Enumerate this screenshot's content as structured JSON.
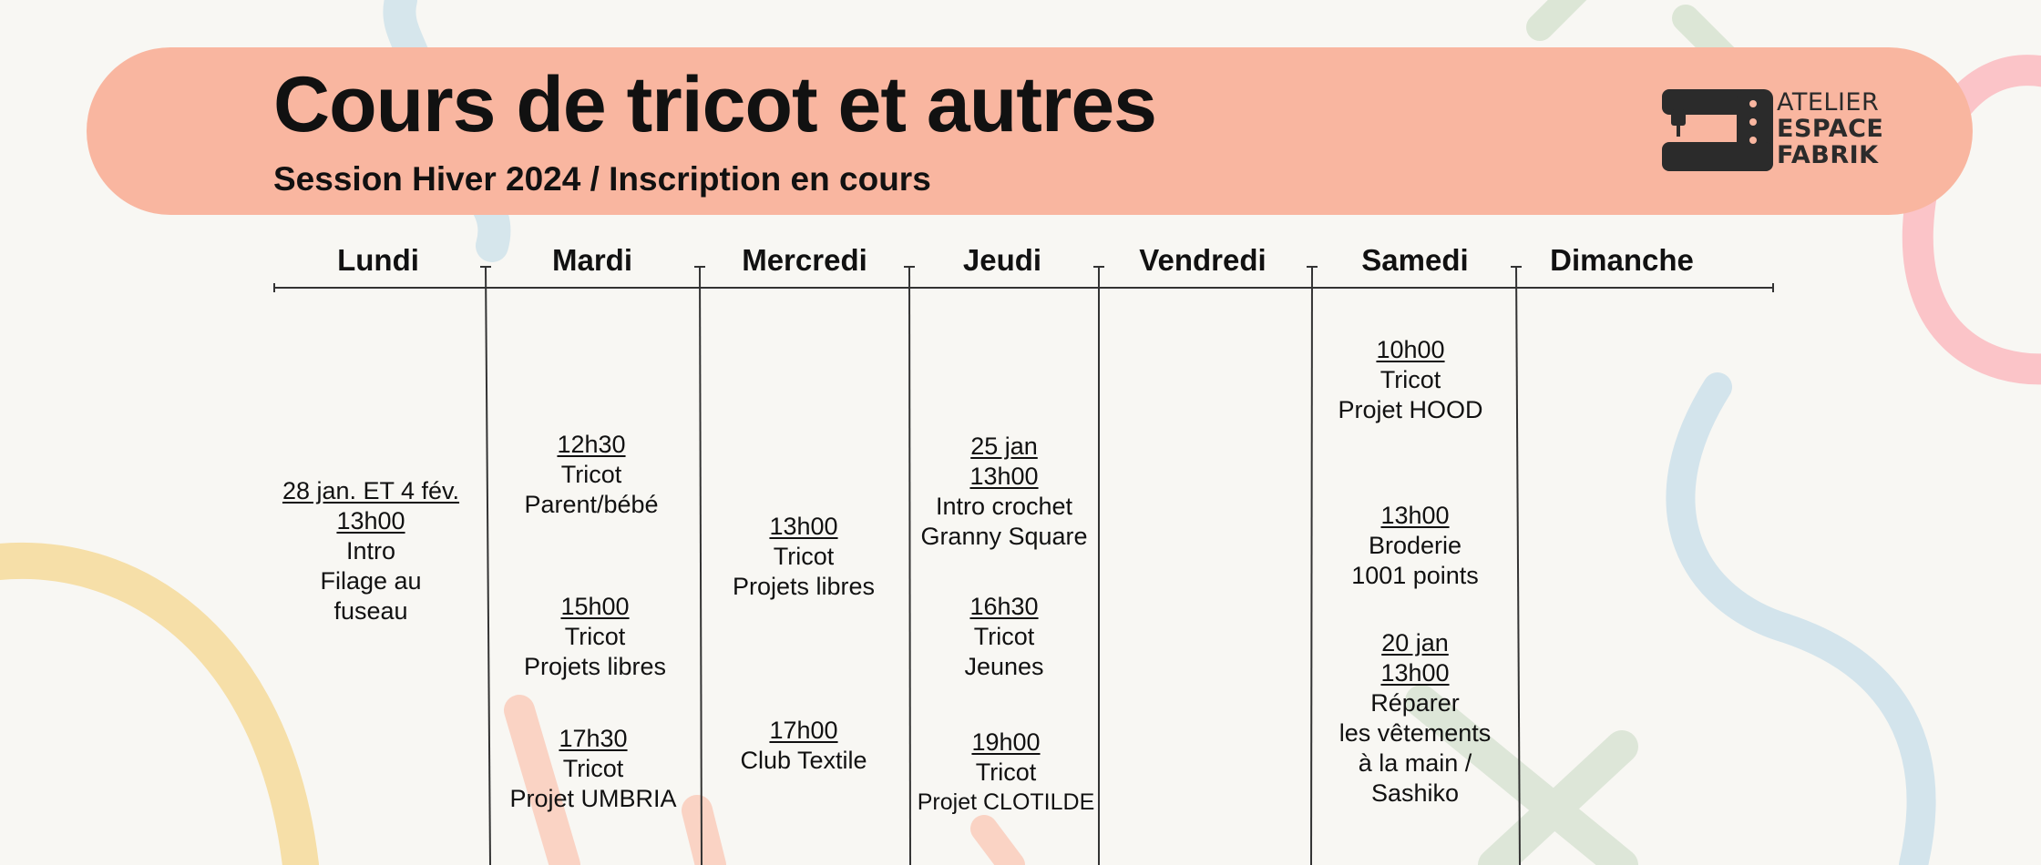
{
  "header": {
    "title": "Cours de tricot et autres",
    "subtitle": "Session Hiver 2024 / Inscription en cours"
  },
  "logo": {
    "line1": "ATELIER",
    "line2": "ESPACE",
    "line3": "FABRIK",
    "icon": "sewing-machine-icon"
  },
  "colors": {
    "banner": "#f9b6a0",
    "background": "#f8f7f3"
  },
  "days": [
    "Lundi",
    "Mardi",
    "Mercredi",
    "Jeudi",
    "Vendredi",
    "Samedi",
    "Dimanche"
  ],
  "events": {
    "lundi_1": {
      "date": "28 jan. ET 4 fév.",
      "time": "13h00",
      "l1": "Intro",
      "l2": "Filage au",
      "l3": "fuseau"
    },
    "mardi_1": {
      "time": "12h30",
      "l1": "Tricot",
      "l2": "Parent/bébé"
    },
    "mardi_2": {
      "time": "15h00",
      "l1": "Tricot",
      "l2": "Projets libres"
    },
    "mardi_3": {
      "time": "17h30",
      "l1": "Tricot",
      "l2": "Projet UMBRIA"
    },
    "mercredi_1": {
      "time": "13h00",
      "l1": "Tricot",
      "l2": "Projets libres"
    },
    "mercredi_2": {
      "time": "17h00",
      "l1": "Club Textile"
    },
    "jeudi_1": {
      "date": "25 jan",
      "time": "13h00",
      "l1": "Intro crochet",
      "l2": "Granny Square"
    },
    "jeudi_2": {
      "time": "16h30",
      "l1": "Tricot",
      "l2": "Jeunes"
    },
    "jeudi_3": {
      "time": "19h00",
      "l1": "Tricot",
      "l2": "Projet CLOTILDE"
    },
    "samedi_1": {
      "time": "10h00",
      "l1": "Tricot",
      "l2": "Projet HOOD"
    },
    "samedi_2": {
      "time": "13h00",
      "l1": "Broderie",
      "l2": "1001 points"
    },
    "samedi_3": {
      "date": "20 jan",
      "time": "13h00",
      "l1": "Réparer",
      "l2": "les vêtements",
      "l3": "à la main /",
      "l4": "Sashiko"
    }
  }
}
